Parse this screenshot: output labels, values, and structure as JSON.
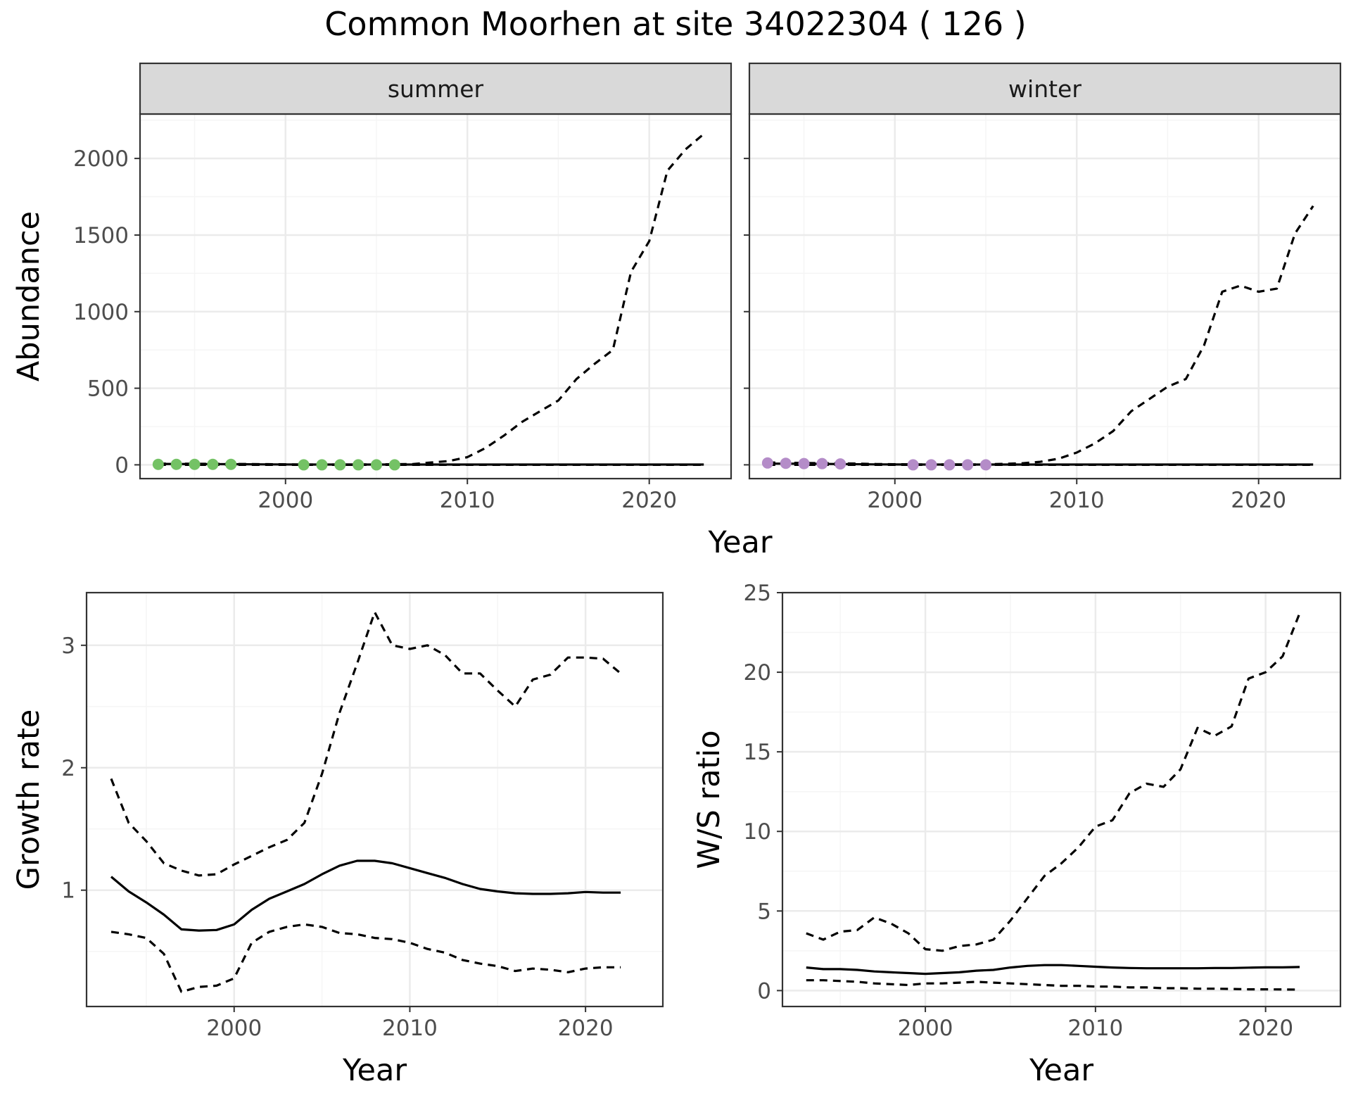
{
  "title": "Common Moorhen at site 34022304 ( 126 )",
  "colors": {
    "summer_points": "#74c265",
    "winter_points": "#b48cc8",
    "line": "#000000",
    "strip_fill": "#d9d9d9",
    "grid_major": "#ebebeb",
    "grid_minor": "#f5f5f5"
  },
  "chart_data": [
    {
      "type": "line",
      "facet": "summer",
      "xlabel": "Year",
      "ylabel": "Abundance",
      "xlim": [
        1992,
        2024.5
      ],
      "ylim": [
        -90,
        2290
      ],
      "xticks": [
        2000,
        2010,
        2020
      ],
      "yticks": [
        0,
        500,
        1000,
        1500,
        2000
      ],
      "grid": true,
      "points": {
        "x": [
          1993,
          1994,
          1995,
          1996,
          1997,
          2001,
          2002,
          2003,
          2004,
          2005,
          2006
        ],
        "y": [
          3,
          3,
          3,
          3,
          3,
          0,
          0,
          0,
          0,
          0,
          0
        ]
      },
      "series": [
        {
          "style": "solid",
          "x": [
            1993,
            1995,
            1997,
            1999,
            2001,
            2003,
            2005,
            2007,
            2009,
            2011,
            2013,
            2015,
            2017,
            2019,
            2021,
            2023
          ],
          "y": [
            6,
            5,
            4,
            3,
            2,
            2,
            2,
            2,
            2,
            2,
            2,
            2,
            2,
            2,
            2,
            2
          ]
        },
        {
          "style": "dashed",
          "x": [
            1993,
            1995,
            1997,
            1999,
            2001,
            2003,
            2005,
            2007,
            2008,
            2009,
            2010,
            2011,
            2012,
            2013,
            2014,
            2015,
            2016,
            2017,
            2018,
            2019,
            2020,
            2021,
            2022,
            2023
          ],
          "y": [
            8,
            7,
            6,
            4,
            2,
            2,
            3,
            5,
            15,
            25,
            50,
            110,
            190,
            280,
            350,
            420,
            560,
            660,
            750,
            1260,
            1460,
            1920,
            2060,
            2160
          ]
        },
        {
          "style": "dashed",
          "x": [
            1993,
            2000,
            2010,
            2023
          ],
          "y": [
            0,
            0,
            0,
            0
          ]
        }
      ]
    },
    {
      "type": "line",
      "facet": "winter",
      "xlabel": "Year",
      "ylabel": "Abundance",
      "xlim": [
        1992,
        2024.5
      ],
      "ylim": [
        -90,
        2290
      ],
      "xticks": [
        2000,
        2010,
        2020
      ],
      "yticks": [
        0,
        500,
        1000,
        1500,
        2000
      ],
      "grid": true,
      "points": {
        "x": [
          1993,
          1994,
          1995,
          1996,
          1997,
          2001,
          2002,
          2003,
          2004,
          2005
        ],
        "y": [
          12,
          10,
          8,
          8,
          6,
          0,
          0,
          0,
          0,
          0
        ]
      },
      "series": [
        {
          "style": "solid",
          "x": [
            1993,
            1995,
            1997,
            1999,
            2001,
            2003,
            2005,
            2007,
            2009,
            2011,
            2013,
            2015,
            2017,
            2019,
            2021,
            2023
          ],
          "y": [
            8,
            7,
            5,
            3,
            2,
            2,
            2,
            2,
            2,
            2,
            2,
            2,
            2,
            2,
            2,
            2
          ]
        },
        {
          "style": "dashed",
          "x": [
            1993,
            1995,
            1997,
            1999,
            2001,
            2003,
            2005,
            2007,
            2008,
            2009,
            2010,
            2011,
            2012,
            2013,
            2014,
            2015,
            2016,
            2017,
            2018,
            2019,
            2020,
            2021,
            2022,
            2023
          ],
          "y": [
            15,
            12,
            10,
            5,
            3,
            3,
            3,
            10,
            20,
            40,
            80,
            140,
            220,
            350,
            430,
            510,
            560,
            780,
            1130,
            1170,
            1130,
            1150,
            1510,
            1690
          ]
        },
        {
          "style": "dashed",
          "x": [
            1993,
            2000,
            2010,
            2023
          ],
          "y": [
            0,
            0,
            0,
            0
          ]
        }
      ]
    },
    {
      "type": "line",
      "xlabel": "Year",
      "ylabel": "Growth rate",
      "xlim": [
        1991.6,
        2024.4
      ],
      "ylim": [
        0.05,
        3.43
      ],
      "xticks": [
        2000,
        2010,
        2020
      ],
      "yticks": [
        1,
        2,
        3
      ],
      "grid": true,
      "series": [
        {
          "style": "solid",
          "x": [
            1993,
            1994,
            1995,
            1996,
            1997,
            1998,
            1999,
            2000,
            2001,
            2002,
            2003,
            2004,
            2005,
            2006,
            2007,
            2008,
            2009,
            2010,
            2011,
            2012,
            2013,
            2014,
            2015,
            2016,
            2017,
            2018,
            2019,
            2020,
            2021,
            2022
          ],
          "y": [
            1.11,
            0.99,
            0.9,
            0.8,
            0.68,
            0.67,
            0.675,
            0.72,
            0.84,
            0.93,
            0.99,
            1.05,
            1.13,
            1.2,
            1.24,
            1.24,
            1.22,
            1.18,
            1.14,
            1.1,
            1.05,
            1.01,
            0.99,
            0.975,
            0.97,
            0.97,
            0.975,
            0.985,
            0.98,
            0.98
          ]
        },
        {
          "style": "dashed",
          "x": [
            1993,
            1994,
            1995,
            1996,
            1997,
            1998,
            1999,
            2000,
            2001,
            2002,
            2003,
            2004,
            2005,
            2006,
            2007,
            2008,
            2009,
            2010,
            2011,
            2012,
            2013,
            2014,
            2015,
            2016,
            2017,
            2018,
            2019,
            2020,
            2021,
            2022
          ],
          "y": [
            1.91,
            1.55,
            1.4,
            1.22,
            1.16,
            1.12,
            1.13,
            1.21,
            1.28,
            1.35,
            1.41,
            1.55,
            1.95,
            2.45,
            2.85,
            3.27,
            3.0,
            2.97,
            3.0,
            2.92,
            2.77,
            2.77,
            2.63,
            2.5,
            2.72,
            2.76,
            2.9,
            2.9,
            2.89,
            2.77
          ]
        },
        {
          "style": "dashed",
          "x": [
            1993,
            1994,
            1995,
            1996,
            1997,
            1998,
            1999,
            2000,
            2001,
            2002,
            2003,
            2004,
            2005,
            2006,
            2007,
            2008,
            2009,
            2010,
            2011,
            2012,
            2013,
            2014,
            2015,
            2016,
            2017,
            2018,
            2019,
            2020,
            2021,
            2022
          ],
          "y": [
            0.66,
            0.64,
            0.61,
            0.48,
            0.17,
            0.21,
            0.22,
            0.28,
            0.57,
            0.66,
            0.7,
            0.72,
            0.7,
            0.65,
            0.64,
            0.61,
            0.6,
            0.57,
            0.52,
            0.49,
            0.43,
            0.4,
            0.38,
            0.34,
            0.36,
            0.35,
            0.33,
            0.36,
            0.37,
            0.37
          ]
        }
      ]
    },
    {
      "type": "line",
      "xlabel": "Year",
      "ylabel": "W/S ratio",
      "xlim": [
        1991.6,
        2024.4
      ],
      "ylim": [
        -1.0,
        25.0
      ],
      "xticks": [
        2000,
        2010,
        2020
      ],
      "yticks": [
        0,
        5,
        10,
        15,
        20,
        25
      ],
      "grid": true,
      "series": [
        {
          "style": "solid",
          "x": [
            1993,
            1994,
            1995,
            1996,
            1997,
            1998,
            1999,
            2000,
            2001,
            2002,
            2003,
            2004,
            2005,
            2006,
            2007,
            2008,
            2009,
            2010,
            2011,
            2012,
            2013,
            2014,
            2015,
            2016,
            2017,
            2018,
            2019,
            2020,
            2021,
            2022
          ],
          "y": [
            1.45,
            1.35,
            1.35,
            1.3,
            1.2,
            1.15,
            1.1,
            1.05,
            1.1,
            1.15,
            1.25,
            1.3,
            1.45,
            1.55,
            1.6,
            1.6,
            1.55,
            1.5,
            1.45,
            1.42,
            1.4,
            1.4,
            1.4,
            1.4,
            1.42,
            1.42,
            1.44,
            1.46,
            1.46,
            1.48
          ]
        },
        {
          "style": "dashed",
          "x": [
            1993,
            1994,
            1995,
            1996,
            1997,
            1998,
            1999,
            2000,
            2001,
            2002,
            2003,
            2004,
            2005,
            2006,
            2007,
            2008,
            2009,
            2010,
            2011,
            2012,
            2013,
            2014,
            2015,
            2016,
            2017,
            2018,
            2019,
            2020,
            2021,
            2022
          ],
          "y": [
            3.6,
            3.2,
            3.7,
            3.8,
            4.6,
            4.2,
            3.6,
            2.6,
            2.5,
            2.8,
            2.9,
            3.2,
            4.4,
            5.8,
            7.2,
            8.0,
            9.0,
            10.3,
            10.7,
            12.4,
            13.0,
            12.8,
            13.9,
            16.5,
            16.0,
            16.6,
            19.6,
            20.0,
            21.0,
            23.7
          ]
        },
        {
          "style": "dashed",
          "x": [
            1993,
            1994,
            1995,
            1996,
            1997,
            1998,
            1999,
            2000,
            2001,
            2002,
            2003,
            2004,
            2005,
            2006,
            2007,
            2008,
            2009,
            2010,
            2011,
            2012,
            2013,
            2014,
            2015,
            2016,
            2017,
            2018,
            2019,
            2020,
            2021,
            2022
          ],
          "y": [
            0.65,
            0.65,
            0.6,
            0.55,
            0.45,
            0.4,
            0.35,
            0.45,
            0.45,
            0.5,
            0.55,
            0.5,
            0.45,
            0.4,
            0.35,
            0.3,
            0.3,
            0.25,
            0.25,
            0.2,
            0.2,
            0.15,
            0.15,
            0.12,
            0.12,
            0.1,
            0.08,
            0.08,
            0.07,
            0.06
          ]
        }
      ]
    }
  ]
}
